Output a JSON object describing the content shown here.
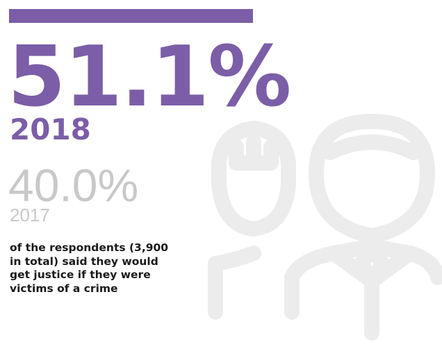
{
  "headline": {
    "value": "51.1%",
    "year": "2018"
  },
  "previous": {
    "value": "40.0%",
    "year": "2017"
  },
  "description": "of the respondents (3,900 in total) said they would get justice if they were victims of a crime",
  "colors": {
    "accent": "#7b5ea7",
    "muted": "#c8c8c8",
    "illustration": "#ececec",
    "text": "#1a1a1a"
  },
  "icons": [
    "people-icon"
  ]
}
